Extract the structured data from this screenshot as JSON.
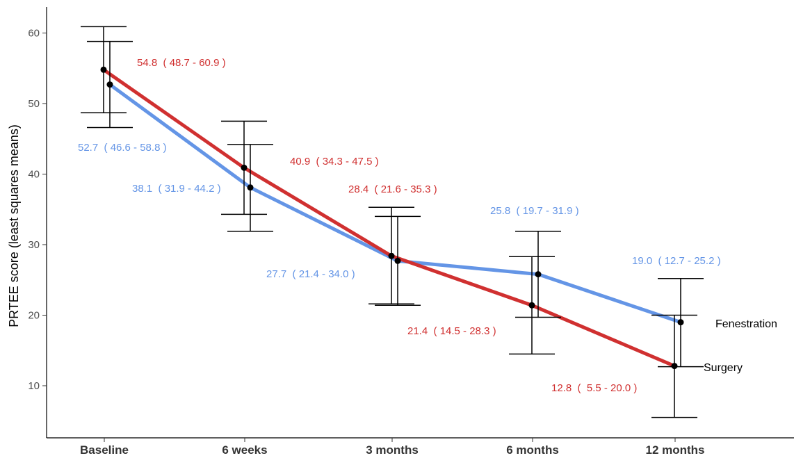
{
  "chart_data": {
    "type": "line",
    "categories": [
      "Baseline",
      "6 weeks",
      "3 months",
      "6 months",
      "12 months"
    ],
    "ylabel": "PRTEE score (least squares means)",
    "xlabel": "",
    "ylim": [
      2,
      66
    ],
    "yticks": [
      10,
      20,
      30,
      40,
      50,
      60
    ],
    "grid": false,
    "colors": {
      "Surgery": "#d03030",
      "Fenestration": "#6495e6"
    },
    "series": [
      {
        "name": "Surgery",
        "values": [
          54.8,
          40.9,
          28.4,
          21.4,
          12.8
        ],
        "lower": [
          48.7,
          34.3,
          21.6,
          14.5,
          5.5
        ],
        "upper": [
          60.9,
          47.5,
          35.3,
          28.3,
          20.0
        ],
        "labels": [
          "54.8  ( 48.7 - 60.9 )",
          "40.9  ( 34.3 - 47.5 )",
          "28.4  ( 21.6 - 35.3 )",
          "21.4  ( 14.5 - 28.3 )",
          "12.8  (  5.5 - 20.0 )"
        ]
      },
      {
        "name": "Fenestration",
        "values": [
          52.7,
          38.1,
          27.7,
          25.8,
          19.0
        ],
        "lower": [
          46.6,
          31.9,
          21.4,
          19.7,
          12.7
        ],
        "upper": [
          58.8,
          44.2,
          34.0,
          31.9,
          25.2
        ],
        "labels": [
          "52.7  ( 46.6 - 58.8 )",
          "38.1  ( 31.9 - 44.2 )",
          "27.7  ( 21.4 - 34.0 )",
          "25.8  ( 19.7 - 31.9 )",
          "19.0  ( 12.7 - 25.2 )"
        ]
      }
    ]
  }
}
